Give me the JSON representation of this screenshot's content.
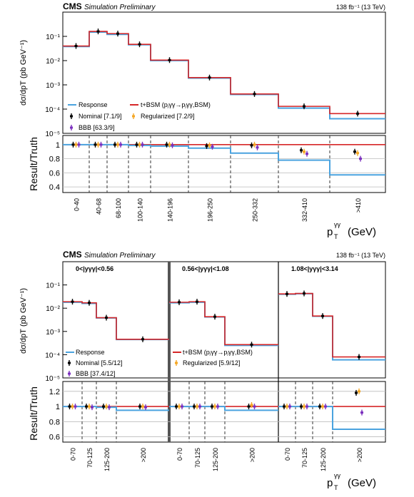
{
  "colors": {
    "response": "#4aa3df",
    "bsm": "#d62728",
    "nominal": "#000000",
    "regularized": "#f5a623",
    "bbb": "#7b2fbe",
    "cms": "#000000"
  },
  "chart_data": [
    {
      "type": "line",
      "cms_label": "CMS",
      "cms_sub": "Simulation  Preliminary",
      "lumi": "138 fb⁻¹ (13 TeV)",
      "ylabel": "dσ/dp",
      "ylabel_sup": "γγ",
      "ylabel_sub": "T",
      "ylabel_unit": "(pb GeV⁻¹)",
      "ratio_label": "Result/Truth",
      "xlabel_main": "p",
      "xlabel_sub": "T",
      "xlabel_sup": "γγ",
      "xlabel_unit": "(GeV)",
      "log_y": true,
      "ylim_exp": [
        -5,
        0
      ],
      "ratio_ylim": [
        0.32,
        1.13
      ],
      "ratio_ticks": [
        "0.4",
        "0.6",
        "0.8",
        "1"
      ],
      "y_tick_labels": [
        "10⁻⁵",
        "10⁻⁴",
        "10⁻³",
        "10⁻²",
        "10⁻¹"
      ],
      "categories": [
        "0-40",
        "40-68",
        "68-100",
        "100-140",
        "140-196",
        "196-250",
        "250-332",
        "332-410",
        ">410"
      ],
      "legend": [
        {
          "key": "response",
          "label": "Response"
        },
        {
          "key": "bsm",
          "label": "t+BSM (pⱼγγ→pⱼγγ,BSM)"
        },
        {
          "key": "nominal",
          "label": "Nominal [7.1/9]"
        },
        {
          "key": "regularized",
          "label": "Regularized [7.2/9]"
        },
        {
          "key": "bbb",
          "label": "BBB [63.3/9]"
        }
      ],
      "series": [
        {
          "name": "Response",
          "values": [
            0.038,
            0.15,
            0.12,
            0.045,
            0.01,
            0.0019,
            0.0004,
            0.00011,
            4e-05
          ]
        },
        {
          "name": "t+BSM",
          "values": [
            0.04,
            0.16,
            0.13,
            0.047,
            0.0105,
            0.002,
            0.00042,
            0.00013,
            6.5e-05
          ]
        }
      ],
      "ratio_points": {
        "nominal": [
          1.0,
          1.0,
          1.0,
          1.0,
          1.0,
          0.98,
          0.99,
          0.92,
          0.9
        ],
        "regularized": [
          1.0,
          1.0,
          1.0,
          1.0,
          1.0,
          0.99,
          1.0,
          0.9,
          0.88
        ],
        "bbb": [
          1.0,
          1.0,
          1.0,
          1.0,
          0.99,
          0.97,
          0.96,
          0.87,
          0.8
        ]
      },
      "ratio_response": [
        1.0,
        1.0,
        1.0,
        0.99,
        0.98,
        0.95,
        0.88,
        0.78,
        0.57
      ]
    },
    {
      "type": "line",
      "cms_label": "CMS",
      "cms_sub": "Simulation  Preliminary",
      "lumi": "138 fb⁻¹ (13 TeV)",
      "ylabel": "dσ/dp",
      "ylabel_sup": "γγ",
      "ylabel_sub": "T",
      "ylabel_unit": "(pb GeV⁻¹)",
      "ratio_label": "Result/Truth",
      "xlabel_main": "p",
      "xlabel_sub": "T",
      "xlabel_sup": "γγ",
      "xlabel_unit": "(GeV)",
      "log_y": true,
      "ylim_exp": [
        -5,
        0
      ],
      "ratio_ylim": [
        0.53,
        1.33
      ],
      "ratio_ticks": [
        "0.6",
        "0.8",
        "1",
        "1.2"
      ],
      "y_tick_labels": [
        "10⁻⁵",
        "10⁻⁴",
        "10⁻³",
        "10⁻²",
        "10⁻¹"
      ],
      "regions": [
        "0<|yγγ|<0.56",
        "0.56<|yγγ|<1.08",
        "1.08<|yγγ|<3.14"
      ],
      "categories": [
        "0-70",
        "70-125",
        "125-200",
        ">200"
      ],
      "legend": [
        {
          "key": "response",
          "label": "Response"
        },
        {
          "key": "nominal",
          "label": "Nominal [5.5/12]"
        },
        {
          "key": "bbb",
          "label": "BBB [37.4/12]"
        },
        {
          "key": "bsm",
          "label": "t+BSM (pⱼγγ→pⱼγγ,BSM)"
        },
        {
          "key": "regularized",
          "label": "Regularized [5.9/12]"
        }
      ],
      "series": [
        {
          "name": "Response",
          "values": [
            [
              0.018,
              0.016,
              0.0038,
              0.00045
            ],
            [
              0.017,
              0.018,
              0.0042,
              0.00025
            ],
            [
              0.04,
              0.042,
              0.0045,
              6e-05
            ]
          ]
        },
        {
          "name": "t+BSM",
          "values": [
            [
              0.019,
              0.017,
              0.0039,
              0.00046
            ],
            [
              0.018,
              0.019,
              0.0043,
              0.00027
            ],
            [
              0.041,
              0.043,
              0.0046,
              8e-05
            ]
          ]
        }
      ],
      "ratio_points": {
        "nominal": [
          [
            1.0,
            1.0,
            1.0,
            1.0
          ],
          [
            1.0,
            1.0,
            1.0,
            1.0
          ],
          [
            1.0,
            1.0,
            1.0,
            1.18
          ]
        ],
        "regularized": [
          [
            1.0,
            1.0,
            1.0,
            1.0
          ],
          [
            1.0,
            1.0,
            1.0,
            1.02
          ],
          [
            1.0,
            1.0,
            1.0,
            1.2
          ]
        ],
        "bbb": [
          [
            1.0,
            0.99,
            0.99,
            0.99
          ],
          [
            1.0,
            1.0,
            1.0,
            1.0
          ],
          [
            1.0,
            1.0,
            1.0,
            0.92
          ]
        ]
      },
      "ratio_response": [
        [
          1.0,
          1.0,
          0.99,
          0.95
        ],
        [
          1.0,
          1.0,
          1.0,
          0.95
        ],
        [
          1.0,
          1.0,
          1.0,
          0.7
        ]
      ]
    }
  ]
}
